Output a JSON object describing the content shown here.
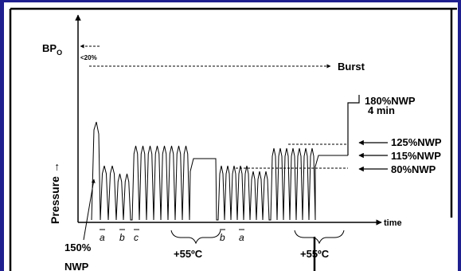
{
  "figure": {
    "bp_label": "BP",
    "bp_subscript": "O",
    "lt20_label": "<20%",
    "burst_label": "Burst",
    "label_180": "180%NWP",
    "label_4min": "4 min",
    "label_125": "125%NWP",
    "label_115": "115%NWP",
    "label_80": "80%NWP",
    "y_axis_label": "Pressure →",
    "x_axis_label": "time",
    "label_150": "150%",
    "label_nwp": "NWP",
    "seg_a1": "a",
    "seg_b1": "b",
    "seg_c1": "c",
    "temp_1": "+55ºC",
    "seg_b2": "b",
    "seg_a2": "a",
    "temp_2": "+55ºC"
  }
}
